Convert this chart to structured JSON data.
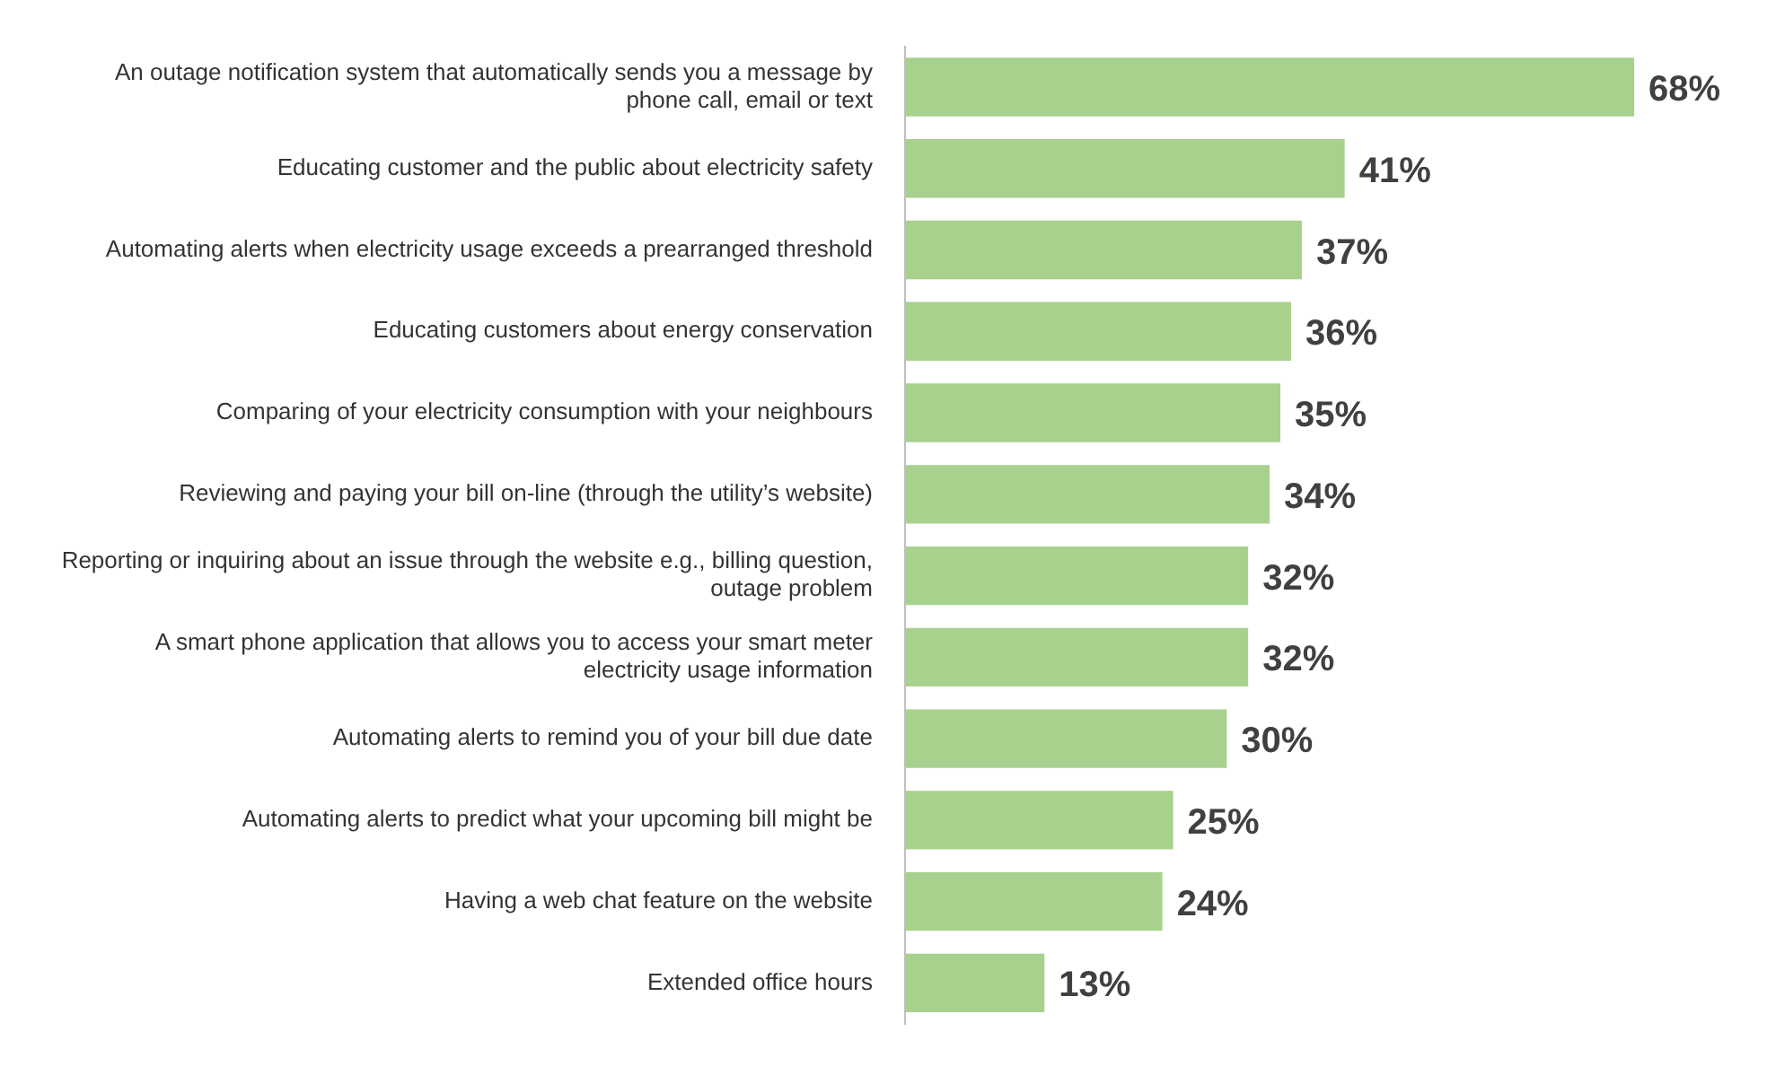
{
  "chart_data": {
    "type": "bar",
    "orientation": "horizontal",
    "categories": [
      "An outage notification system that automatically sends you a message by phone call, email or text",
      "Educating customer and the public about electricity safety",
      "Automating alerts when electricity usage exceeds a prearranged threshold",
      "Educating customers about energy conservation",
      "Comparing of your electricity consumption with your neighbours",
      "Reviewing and paying your bill on-line (through the utility’s website)",
      "Reporting or inquiring about an issue through the website e.g., billing question, outage problem",
      "A smart phone application that allows you to access your smart meter electricity usage information",
      "Automating alerts to remind you of your bill due date",
      "Automating alerts to predict what your upcoming bill might be",
      "Having a web chat feature on the website",
      "Extended office hours"
    ],
    "values": [
      68,
      41,
      37,
      36,
      35,
      34,
      32,
      32,
      30,
      25,
      24,
      13
    ],
    "value_labels": [
      "68%",
      "41%",
      "37%",
      "36%",
      "35%",
      "34%",
      "32%",
      "32%",
      "30%",
      "25%",
      "24%",
      "13%"
    ],
    "color": "#a9d18e",
    "tick_labels": "y",
    "grid": false,
    "legend": false
  }
}
